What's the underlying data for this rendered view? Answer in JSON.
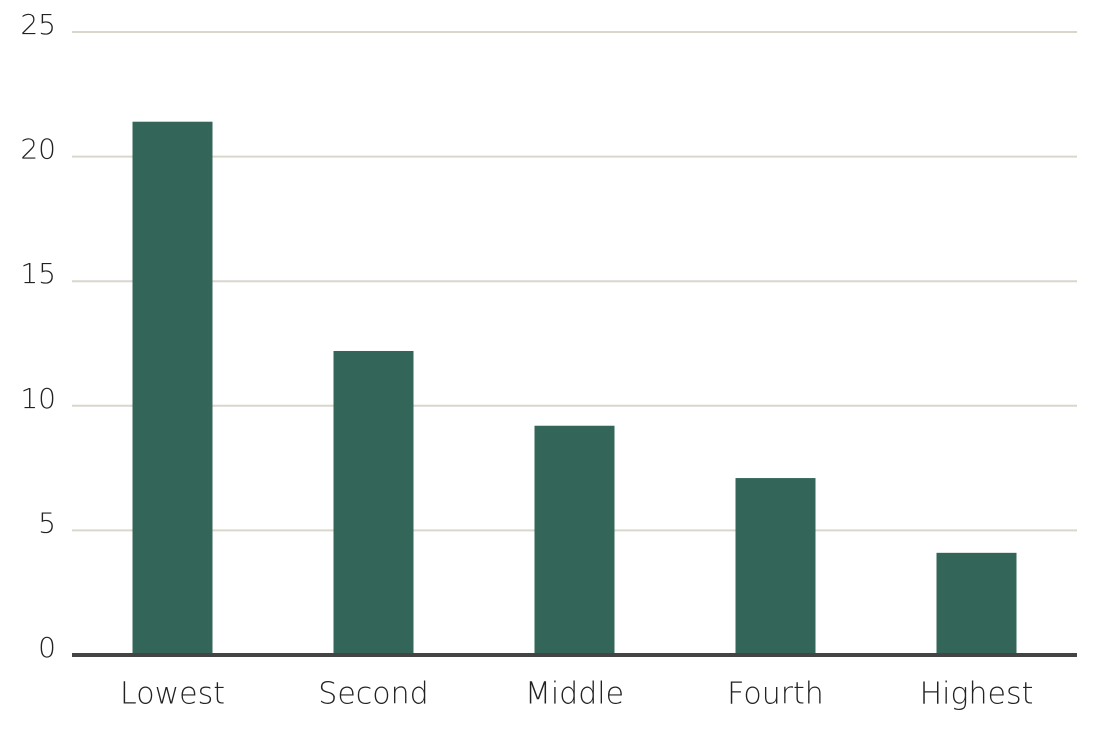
{
  "chart_data": {
    "type": "bar",
    "categories": [
      "Lowest",
      "Second",
      "Middle",
      "Fourth",
      "Highest"
    ],
    "values": [
      21.4,
      12.2,
      9.2,
      7.1,
      4.1
    ],
    "color": "#336659",
    "ylim": [
      0,
      25
    ],
    "yticks": [
      0,
      5,
      10,
      15,
      20,
      25
    ],
    "grid": true
  }
}
